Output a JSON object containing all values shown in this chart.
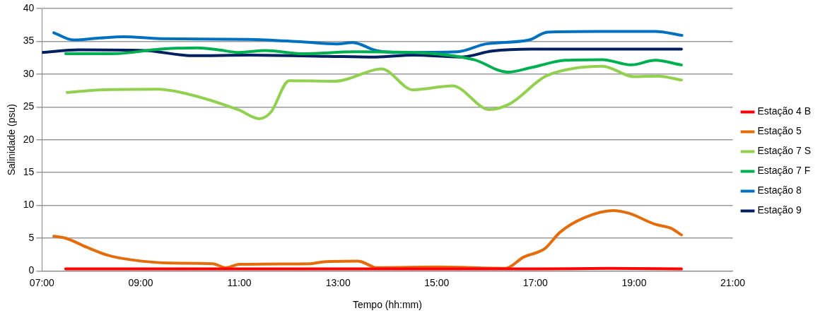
{
  "chart_data": {
    "type": "line",
    "xlabel": "Tempo (hh:mm)",
    "ylabel": "Salinidade (psu)",
    "xlim": [
      7,
      21
    ],
    "xticks": [
      {
        "value": 7,
        "label": "07:00"
      },
      {
        "value": 9,
        "label": "09:00"
      },
      {
        "value": 11,
        "label": "11:00"
      },
      {
        "value": 13,
        "label": "13:00"
      },
      {
        "value": 15,
        "label": "15:00"
      },
      {
        "value": 17,
        "label": "17:00"
      },
      {
        "value": 19,
        "label": "19:00"
      },
      {
        "value": 21,
        "label": "21:00"
      }
    ],
    "ylim": [
      0,
      40
    ],
    "yticks": [
      0,
      5,
      10,
      15,
      20,
      25,
      30,
      35,
      40
    ],
    "grid": "y",
    "legend": "right",
    "marker": "none",
    "line_style": "solid",
    "series": [
      {
        "name": "Estação 4 B",
        "color": "#ff0000",
        "x": [
          7.48,
          9,
          11,
          13,
          15,
          17,
          18.5,
          19.96
        ],
        "values": [
          0.3,
          0.3,
          0.3,
          0.3,
          0.3,
          0.3,
          0.4,
          0.3
        ]
      },
      {
        "name": "Estação 5",
        "color": "#e46c0a",
        "x": [
          7.24,
          7.48,
          7.91,
          8.33,
          8.81,
          9.61,
          10.46,
          10.73,
          11.0,
          12.44,
          12.71,
          13.4,
          13.72,
          13.77,
          15.05,
          16.39,
          16.76,
          17.19,
          17.5,
          17.99,
          18.57,
          18.89,
          19.43,
          19.75,
          19.96
        ],
        "values": [
          5.3,
          5.0,
          3.6,
          2.4,
          1.7,
          1.2,
          1.1,
          0.5,
          1.0,
          1.1,
          1.4,
          1.5,
          0.6,
          0.5,
          0.6,
          0.4,
          2.1,
          3.4,
          5.9,
          8.1,
          9.2,
          8.8,
          7.1,
          6.5,
          5.5
        ]
      },
      {
        "name": "Estação 7 S",
        "color": "#92d050",
        "x": [
          7.51,
          8.17,
          9.35,
          9.88,
          11.0,
          11.4,
          11.64,
          12.01,
          12.92,
          13.77,
          13.88,
          14.52,
          15.32,
          16.07,
          16.49,
          17.19,
          17.72,
          18.36,
          19.0,
          19.48,
          19.96
        ],
        "values": [
          27.2,
          27.6,
          27.7,
          27.1,
          24.5,
          23.2,
          24.2,
          29.0,
          28.9,
          30.7,
          30.8,
          27.6,
          28.2,
          24.6,
          25.5,
          29.6,
          30.8,
          31.2,
          29.6,
          29.7,
          29.1
        ]
      },
      {
        "name": "Estação 7 F",
        "color": "#00b050",
        "x": [
          7.48,
          8.44,
          9.4,
          10.15,
          10.57,
          11.0,
          11.53,
          12.28,
          13.34,
          14.52,
          15.75,
          16.44,
          16.92,
          17.61,
          18.36,
          18.94,
          19.43,
          19.96
        ],
        "values": [
          33.1,
          33.1,
          33.8,
          34.0,
          33.7,
          33.3,
          33.6,
          33.1,
          33.4,
          33.3,
          32.2,
          30.3,
          31.0,
          32.1,
          32.2,
          31.4,
          32.1,
          31.4
        ]
      },
      {
        "name": "Estação 8",
        "color": "#0070c0",
        "x": [
          7.24,
          7.64,
          8.17,
          8.65,
          9.4,
          11.2,
          12.28,
          12.97,
          13.3,
          13.77,
          14.25,
          15.42,
          16.0,
          16.87,
          17.25,
          18.25,
          19.43,
          19.97
        ],
        "values": [
          36.3,
          35.2,
          35.5,
          35.7,
          35.4,
          35.3,
          34.9,
          34.6,
          34.8,
          33.6,
          33.3,
          33.4,
          34.6,
          35.2,
          36.4,
          36.5,
          36.5,
          35.9
        ]
      },
      {
        "name": "Estação 9",
        "color": "#002060",
        "x": [
          7.0,
          7.75,
          9.08,
          10.04,
          11.2,
          12.8,
          13.77,
          14.52,
          15.48,
          16.12,
          16.92,
          19.96
        ],
        "values": [
          33.3,
          33.7,
          33.6,
          32.8,
          32.9,
          32.7,
          32.6,
          32.9,
          32.6,
          33.5,
          33.8,
          33.8
        ]
      }
    ]
  }
}
